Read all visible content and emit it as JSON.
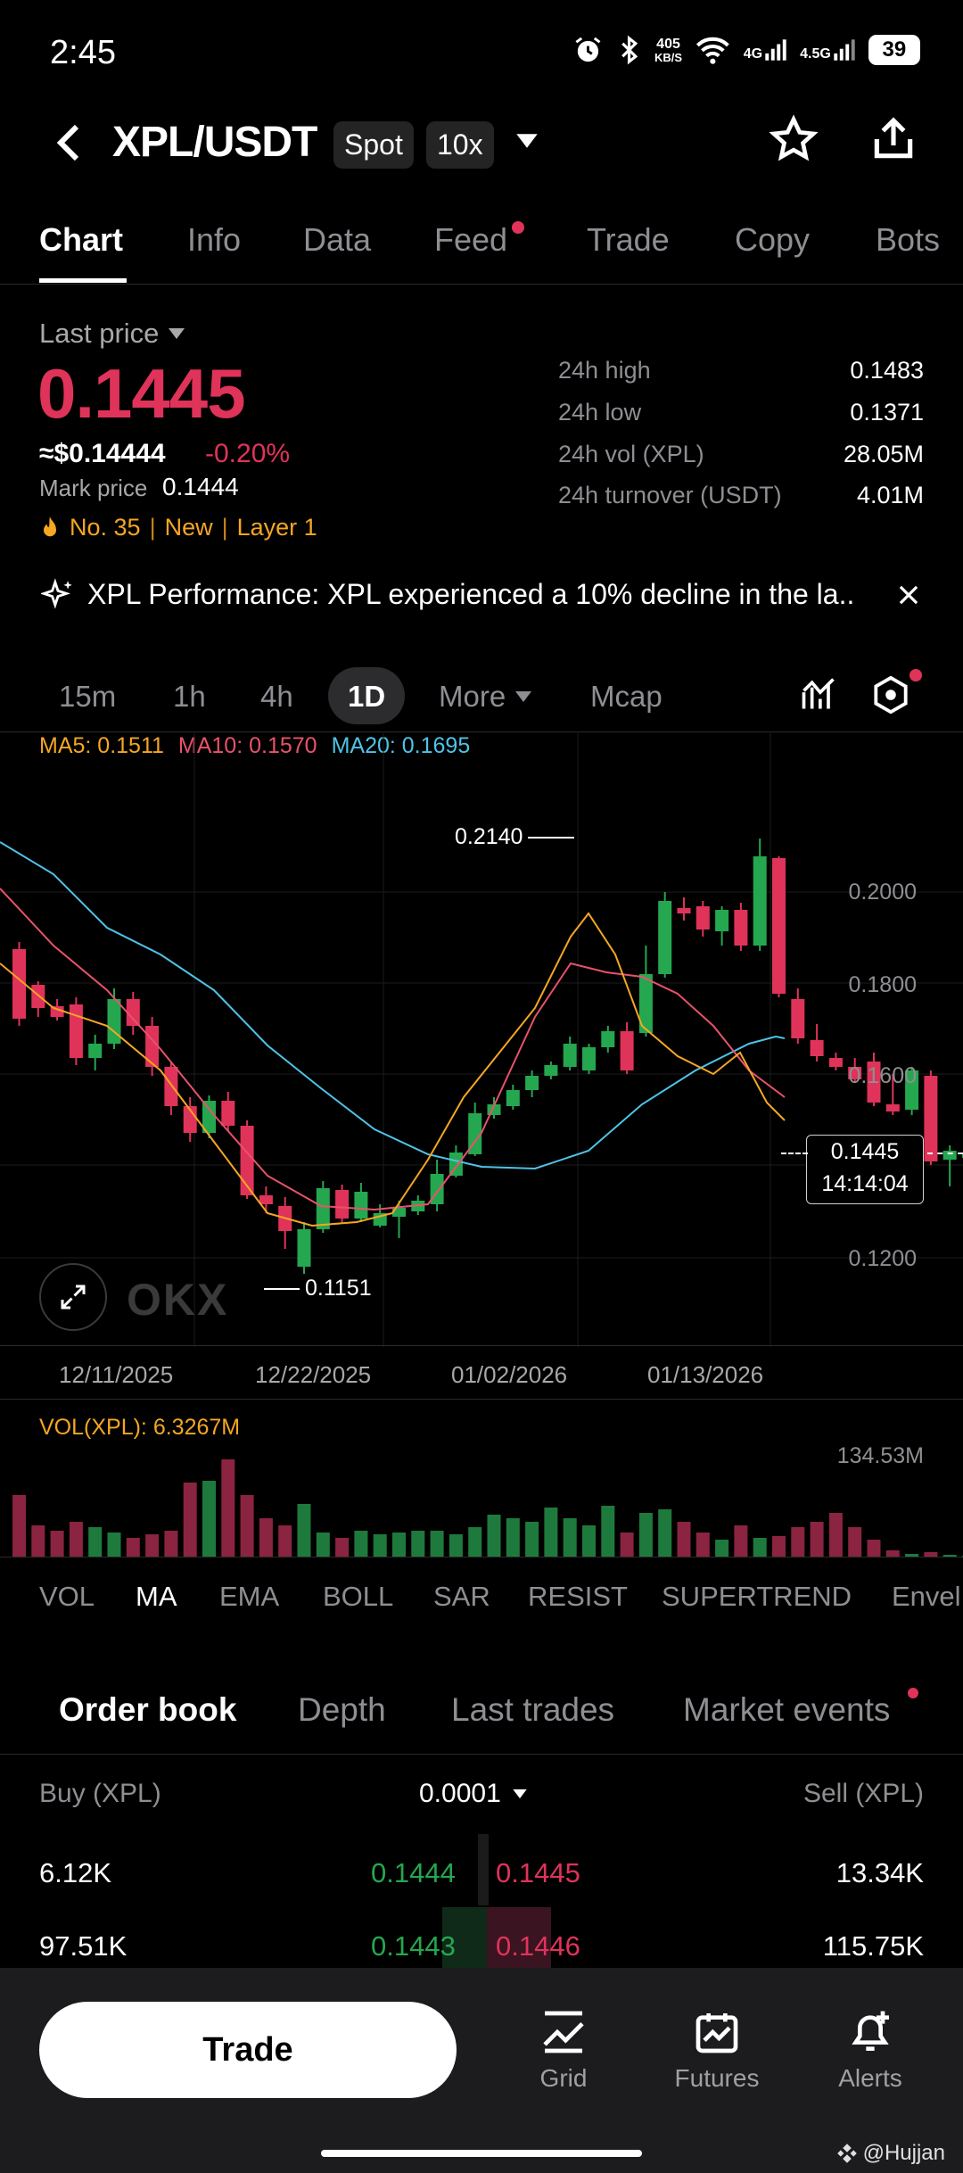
{
  "status_bar": {
    "time": "2:45",
    "net_speed_top": "405",
    "net_speed_unit": "KB/S",
    "sig1": "4G",
    "sig2": "4.5G",
    "battery": "39"
  },
  "header": {
    "pair": "XPL/USDT",
    "market_type": "Spot",
    "leverage": "10x"
  },
  "tabs": [
    "Chart",
    "Info",
    "Data",
    "Feed",
    "Trade",
    "Copy",
    "Bots"
  ],
  "price": {
    "last_label": "Last price",
    "last": "0.1445",
    "usd": "≈$0.14444",
    "change": "-0.20%",
    "mark_label": "Mark price",
    "mark": "0.1444",
    "rank": "No. 35",
    "tag1": "New",
    "tag2": "Layer 1"
  },
  "stats": [
    {
      "label": "24h high",
      "value": "0.1483"
    },
    {
      "label": "24h low",
      "value": "0.1371"
    },
    {
      "label": "24h vol (XPL)",
      "value": "28.05M"
    },
    {
      "label": "24h turnover (USDT)",
      "value": "4.01M"
    }
  ],
  "banner": "XPL Performance: XPL experienced a 10% decline in the la..",
  "timeframes": [
    "15m",
    "1h",
    "4h",
    "1D",
    "More",
    "Mcap"
  ],
  "ma": {
    "ma5": "MA5: 0.1511",
    "ma10": "MA10: 0.1570",
    "ma20": "MA20: 0.1695"
  },
  "chart_labels": {
    "high_marker": "0.2140",
    "low_marker": "0.1151",
    "current_price": "0.1445",
    "countdown": "14:14:04",
    "y_ticks": [
      "0.2000",
      "0.1800",
      "0.1600",
      "0.1200"
    ],
    "x_ticks": [
      "12/11/2025",
      "12/22/2025",
      "01/02/2026",
      "01/13/2026"
    ],
    "watermark": "OKX"
  },
  "volume": {
    "label": "VOL(XPL): 6.3267M",
    "max": "134.53M"
  },
  "indicators": [
    "VOL",
    "MA",
    "EMA",
    "BOLL",
    "SAR",
    "RESIST",
    "SUPERTREND",
    "Envel"
  ],
  "order_tabs": [
    "Order book",
    "Depth",
    "Last trades",
    "Market events"
  ],
  "order_book": {
    "buy_header": "Buy (XPL)",
    "tick": "0.0001",
    "sell_header": "Sell (XPL)",
    "rows": [
      {
        "buy_qty": "6.12K",
        "bid": "0.1444",
        "ask": "0.1445",
        "sell_qty": "13.34K"
      },
      {
        "buy_qty": "97.51K",
        "bid": "0.1443",
        "ask": "0.1446",
        "sell_qty": "115.75K"
      }
    ]
  },
  "bottom_nav": {
    "trade": "Trade",
    "grid": "Grid",
    "futures": "Futures",
    "alerts": "Alerts"
  },
  "watermark_user": "@Hujjan",
  "colors": {
    "up": "#25a750",
    "down": "#e0335a",
    "ma5": "#f5a623",
    "ma10": "#e8526a",
    "ma20": "#4fc3e8"
  }
}
